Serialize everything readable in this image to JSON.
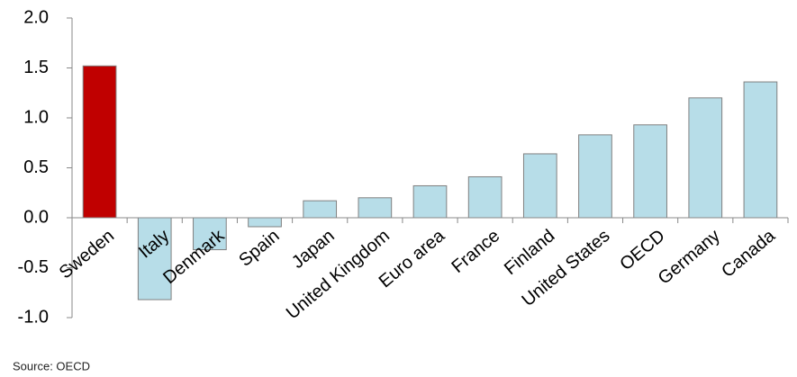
{
  "chart_data": {
    "type": "bar",
    "categories": [
      "Sweden",
      "Italy",
      "Denmark",
      "Spain",
      "Japan",
      "United Kingdom",
      "Euro area",
      "France",
      "Finland",
      "United States",
      "OECD",
      "Germany",
      "Canada"
    ],
    "values": [
      1.52,
      -0.82,
      -0.32,
      -0.09,
      0.17,
      0.2,
      0.32,
      0.41,
      0.64,
      0.83,
      0.93,
      1.2,
      1.36
    ],
    "colors": [
      "#c00000",
      "#b7dde8",
      "#b7dde8",
      "#b7dde8",
      "#b7dde8",
      "#b7dde8",
      "#b7dde8",
      "#b7dde8",
      "#b7dde8",
      "#b7dde8",
      "#b7dde8",
      "#b7dde8",
      "#b7dde8"
    ],
    "ylim": [
      -1,
      2
    ],
    "yticks": [
      {
        "value": -1,
        "label": "-1.0"
      },
      -0.5,
      {
        "value": 0,
        "label": "0.0"
      },
      0.5,
      {
        "value": 1,
        "label": "1.0"
      },
      1.5,
      {
        "value": 2,
        "label": "2.0"
      }
    ],
    "grid": false,
    "note": "Source: OECD"
  }
}
